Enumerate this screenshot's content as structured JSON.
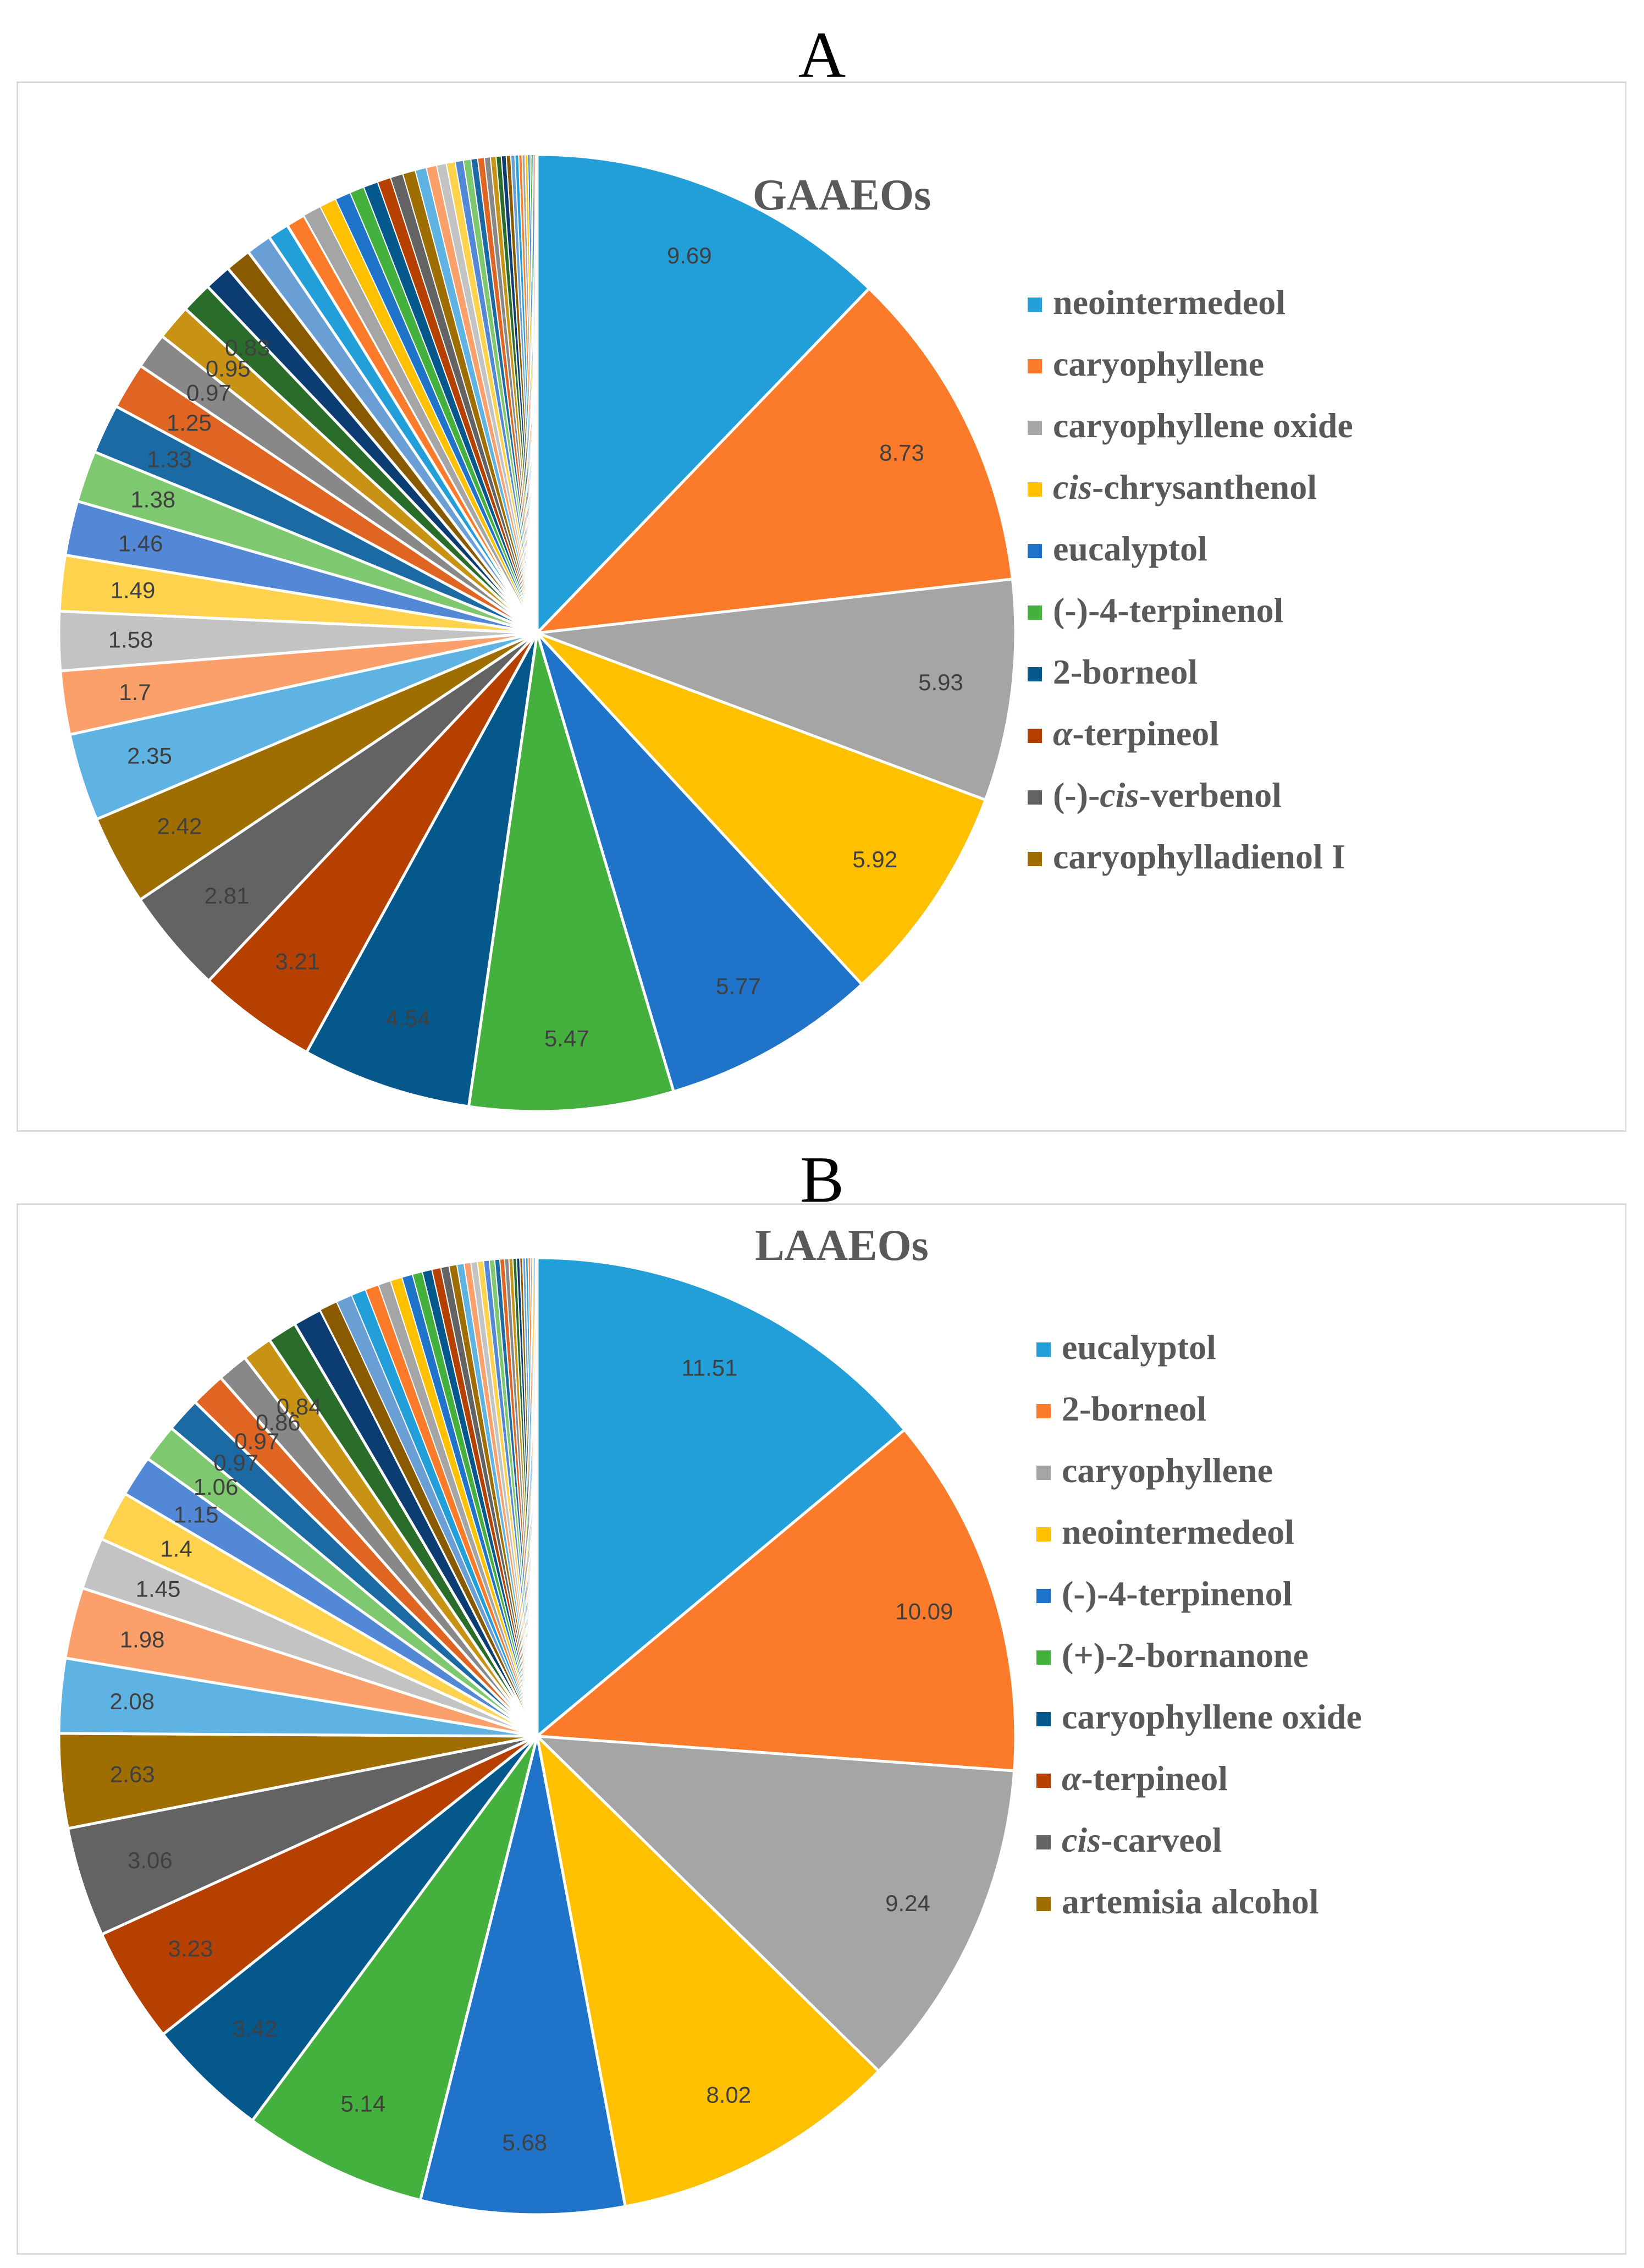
{
  "panels": [
    {
      "panel_label": "A",
      "legend_labels": [
        [
          "neointermedeol"
        ],
        [
          "caryophyllene"
        ],
        [
          "caryophyllene oxide"
        ],
        [
          "cis",
          "-chrysanthenol"
        ],
        [
          "eucalyptol"
        ],
        [
          "(-)-4-terpinenol"
        ],
        [
          "2-borneol"
        ],
        [
          "α",
          "-terpineol"
        ],
        [
          "(-)-",
          "cis",
          "-verbenol"
        ],
        [
          "caryophylladienol I"
        ]
      ],
      "legend_italic_parts": [
        [],
        [],
        [],
        [
          0
        ],
        [],
        [],
        [],
        [
          0
        ],
        [
          1
        ],
        []
      ]
    },
    {
      "panel_label": "B",
      "legend_labels": [
        [
          "eucalyptol"
        ],
        [
          "2-borneol"
        ],
        [
          "caryophyllene"
        ],
        [
          "neointermedeol"
        ],
        [
          "(-)-4-terpinenol"
        ],
        [
          "(+)-2-bornanone"
        ],
        [
          "caryophyllene oxide"
        ],
        [
          "α",
          "-terpineol"
        ],
        [
          "cis",
          "-carveol"
        ],
        [
          "artemisia alcohol"
        ]
      ],
      "legend_italic_parts": [
        [],
        [],
        [],
        [],
        [],
        [],
        [],
        [
          0
        ],
        [
          0
        ],
        []
      ]
    }
  ],
  "palette": [
    "#229fd9",
    "#fb7b2a",
    "#a5a5a5",
    "#ffc000",
    "#1f73c9",
    "#44b03e",
    "#05588c",
    "#b54000",
    "#636363",
    "#9e6f00",
    "#5eb3e3",
    "#fca06b",
    "#c3c3c3",
    "#ffd24d",
    "#5288d6",
    "#7ec96f",
    "#1c6aa3",
    "#e06522",
    "#888888",
    "#c89214",
    "#2a6d2a",
    "#0b3d73",
    "#8a5a00",
    "#6a9fd6"
  ],
  "chart_data": [
    {
      "type": "pie",
      "title": "GAAEOs",
      "legend_position": "right",
      "legend": [
        "neointermedeol",
        "caryophyllene",
        "caryophyllene oxide",
        "cis-chrysanthenol",
        "eucalyptol",
        "(-)-4-terpinenol",
        "2-borneol",
        "α-terpineol",
        "(-)-cis-verbenol",
        "caryophylladienol I"
      ],
      "values": [
        9.69,
        8.73,
        5.93,
        5.92,
        5.77,
        5.47,
        4.54,
        3.21,
        2.81,
        2.42,
        2.35,
        1.7,
        1.58,
        1.49,
        1.46,
        1.38,
        1.33,
        1.25,
        0.97,
        0.95,
        0.83,
        0.72,
        0.69,
        0.68,
        0.57,
        0.51,
        0.49,
        0.45,
        0.42,
        0.39,
        0.39,
        0.36,
        0.34,
        0.34,
        0.3,
        0.28,
        0.26,
        0.24,
        0.22,
        0.2,
        0.18,
        0.18,
        0.16,
        0.15,
        0.14,
        0.13,
        0.12,
        0.11,
        0.1,
        0.09,
        0.08,
        0.07,
        0.06,
        0.05,
        0.05,
        0.04,
        0.03,
        0.02
      ],
      "labeled_count": 21
    },
    {
      "type": "pie",
      "title": "LAAEOs",
      "legend_position": "right",
      "legend": [
        "eucalyptol",
        "2-borneol",
        "caryophyllene",
        "neointermedeol",
        "(-)-4-terpinenol",
        "(+)-2-bornanone",
        "caryophyllene oxide",
        "α-terpineol",
        "cis-carveol",
        "artemisia alcohol"
      ],
      "values": [
        11.51,
        10.09,
        9.24,
        8.02,
        5.68,
        5.14,
        3.42,
        3.23,
        3.06,
        2.63,
        2.08,
        1.98,
        1.45,
        1.4,
        1.15,
        1.06,
        0.97,
        0.97,
        0.86,
        0.84,
        0.82,
        0.8,
        0.5,
        0.45,
        0.41,
        0.38,
        0.35,
        0.33,
        0.3,
        0.28,
        0.27,
        0.25,
        0.23,
        0.22,
        0.2,
        0.19,
        0.18,
        0.17,
        0.16,
        0.15,
        0.14,
        0.13,
        0.12,
        0.11,
        0.1,
        0.09,
        0.08,
        0.08,
        0.07,
        0.06,
        0.05,
        0.05,
        0.04,
        0.03,
        0.02
      ],
      "labeled_count": 20
    }
  ]
}
